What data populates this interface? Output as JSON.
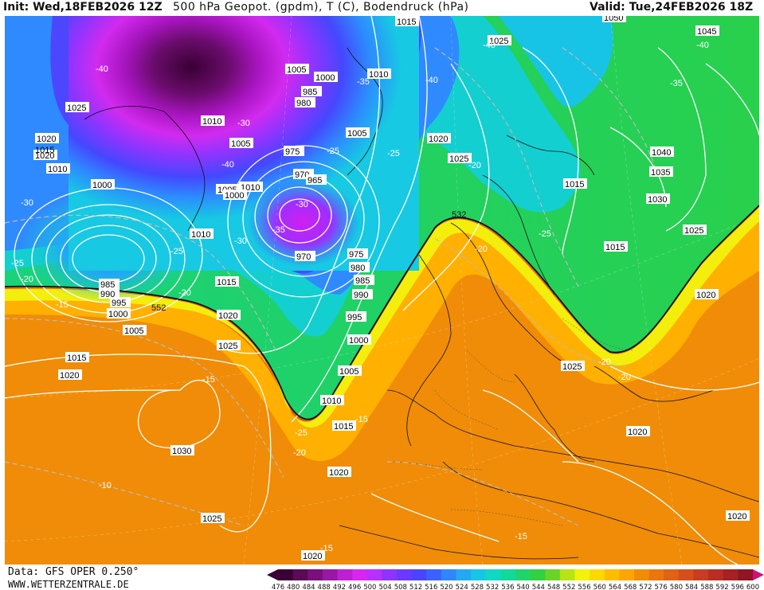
{
  "header": {
    "init": "Init: Wed,18FEB2026 12Z",
    "title": "500 hPa Geopot. (gpdm), T (C), Bodendruck (hPa)",
    "valid": "Valid: Tue,24FEB2026 18Z"
  },
  "footer": {
    "data_source": "Data: GFS OPER 0.250°",
    "site": "WWW.WETTERZENTRALE.DE"
  },
  "colorbar": {
    "ticks": [
      "476",
      "480",
      "484",
      "488",
      "492",
      "496",
      "500",
      "504",
      "508",
      "512",
      "516",
      "520",
      "524",
      "528",
      "532",
      "536",
      "540",
      "544",
      "548",
      "552",
      "556",
      "560",
      "564",
      "568",
      "572",
      "576",
      "580",
      "584",
      "588",
      "592",
      "596",
      "600"
    ],
    "colors": [
      "#3b0036",
      "#5a0a56",
      "#7a0f7d",
      "#9a16a4",
      "#c01fd1",
      "#d726f0",
      "#b830ff",
      "#8e33ff",
      "#6a39ff",
      "#4b44ff",
      "#3a62ff",
      "#2f86ff",
      "#22a8f5",
      "#17c6e6",
      "#10d8c4",
      "#12d99a",
      "#1ed56a",
      "#31d141",
      "#6ad426",
      "#b7e412",
      "#f2f20a",
      "#ffd800",
      "#ffbd00",
      "#ffa400",
      "#f38c05",
      "#ea760d",
      "#e06214",
      "#d54e1b",
      "#c93c1f",
      "#b92d22",
      "#a62024",
      "#8f1622"
    ]
  },
  "map_labels": {
    "pressure": [
      "1005",
      "1015",
      "1025",
      "1020",
      "1010",
      "1005",
      "1000",
      "985",
      "980",
      "975",
      "970",
      "965",
      "1010",
      "1005",
      "1000",
      "1020",
      "1015",
      "1010",
      "1000",
      "985",
      "990",
      "995",
      "1000",
      "1005",
      "1015",
      "1010",
      "1005",
      "1000",
      "995",
      "990",
      "985",
      "980",
      "975",
      "970",
      "1015",
      "1020",
      "1025",
      "1005",
      "1010",
      "1015",
      "1020",
      "1025",
      "1015",
      "1020",
      "1025",
      "1030",
      "1035",
      "1040",
      "1045",
      "1050",
      "1025",
      "1020",
      "1025",
      "1015",
      "1010",
      "1005",
      "1030",
      "1025",
      "1020",
      "1020",
      "1020",
      "1020"
    ],
    "temperature": [
      "-40",
      "-40",
      "-40",
      "-35",
      "-30",
      "-30",
      "-35",
      "-40",
      "-40",
      "-25",
      "-25",
      "-35",
      "-30",
      "-30",
      "-25",
      "-20",
      "-25",
      "-20",
      "-20",
      "-15",
      "-15",
      "-20",
      "-25",
      "-25",
      "-20",
      "-20",
      "-15",
      "-10",
      "-15",
      "-15",
      "-20"
    ],
    "geopot_552": "552",
    "geopot_532": "532"
  }
}
